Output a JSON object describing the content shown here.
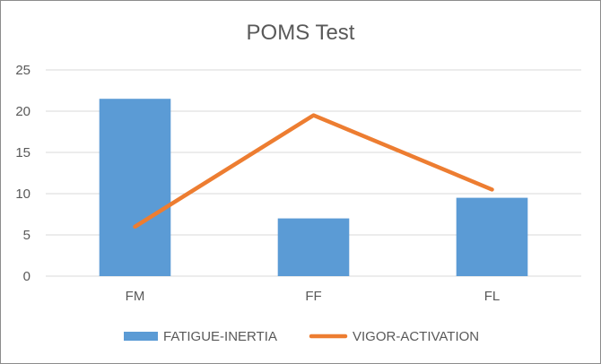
{
  "chart_data": {
    "type": "bar",
    "title": "POMS Test",
    "categories": [
      "FM",
      "FF",
      "FL"
    ],
    "ylim": [
      0,
      25
    ],
    "yticks": [
      0,
      5,
      10,
      15,
      20,
      25
    ],
    "grid": true,
    "legend_position": "bottom",
    "series": [
      {
        "name": "FATIGUE-INERTIA",
        "type": "bar",
        "color": "#5b9bd5",
        "values": [
          21.5,
          7,
          9.5
        ]
      },
      {
        "name": "VIGOR-ACTIVATION",
        "type": "line",
        "color": "#ed7d31",
        "values": [
          6,
          19.5,
          10.5
        ]
      }
    ]
  }
}
